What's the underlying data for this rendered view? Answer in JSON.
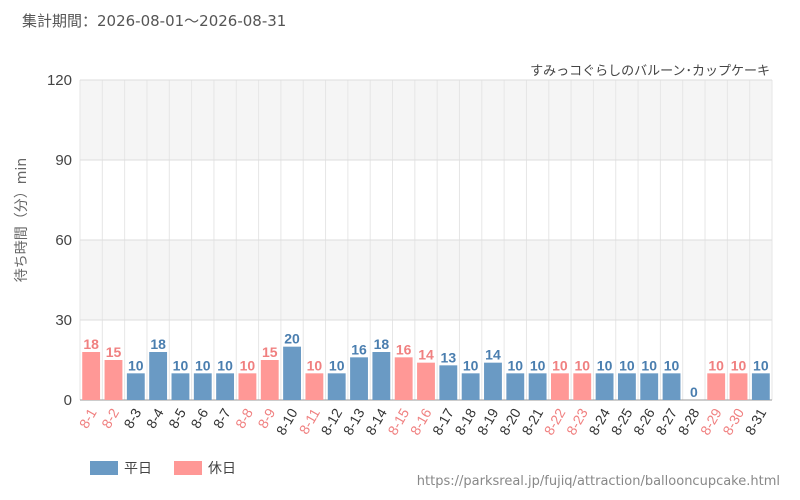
{
  "header": {
    "period": "集計期間：2026-08-01～2026-08-31",
    "attraction": "すみっコぐらしのバルーン･カップケーキ"
  },
  "colors": {
    "weekday": "#6a9ac4",
    "holiday": "#ff9896",
    "weekday_label": "#4a7eaf",
    "holiday_label": "#f08080"
  },
  "legend": {
    "weekday": "平日",
    "holiday": "休日"
  },
  "source": "https://parksreal.jp/fujiq/attraction/ballooncupcake.html",
  "chart_data": {
    "type": "bar",
    "xlabel": "",
    "ylabel": "待ち時間（分）min",
    "ylim": [
      0,
      120
    ],
    "yticks": [
      0,
      30,
      60,
      90,
      120
    ],
    "grid": true,
    "legend_position": "bottom-left",
    "categories": [
      "8-1",
      "8-2",
      "8-3",
      "8-4",
      "8-5",
      "8-6",
      "8-7",
      "8-8",
      "8-9",
      "8-10",
      "8-11",
      "8-12",
      "8-13",
      "8-14",
      "8-15",
      "8-16",
      "8-17",
      "8-18",
      "8-19",
      "8-20",
      "8-21",
      "8-22",
      "8-23",
      "8-24",
      "8-25",
      "8-26",
      "8-27",
      "8-28",
      "8-29",
      "8-30",
      "8-31"
    ],
    "values": [
      18,
      15,
      10,
      18,
      10,
      10,
      10,
      10,
      15,
      20,
      10,
      10,
      16,
      18,
      16,
      14,
      13,
      10,
      14,
      10,
      10,
      10,
      10,
      10,
      10,
      10,
      10,
      0,
      10,
      10,
      10
    ],
    "day_type": [
      "holiday",
      "holiday",
      "weekday",
      "weekday",
      "weekday",
      "weekday",
      "weekday",
      "holiday",
      "holiday",
      "weekday",
      "holiday",
      "weekday",
      "weekday",
      "weekday",
      "holiday",
      "holiday",
      "weekday",
      "weekday",
      "weekday",
      "weekday",
      "weekday",
      "holiday",
      "holiday",
      "weekday",
      "weekday",
      "weekday",
      "weekday",
      "weekday",
      "holiday",
      "holiday",
      "weekday"
    ]
  }
}
